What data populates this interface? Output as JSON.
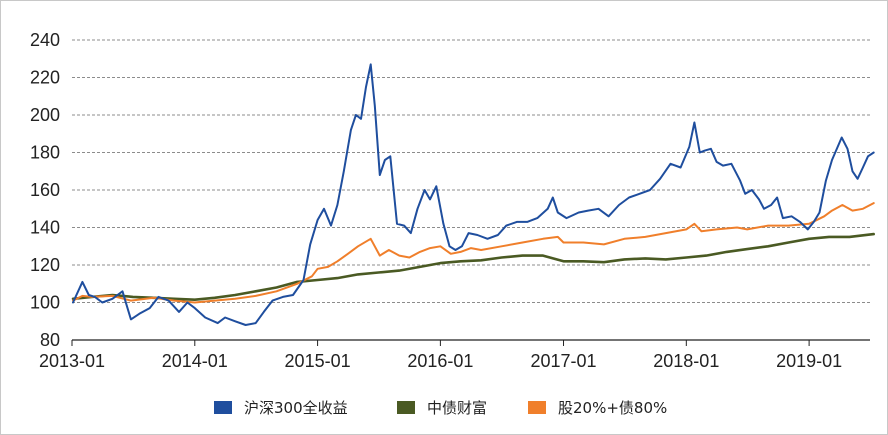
{
  "chart_data": {
    "type": "line",
    "title": "",
    "xlabel": "",
    "ylabel": "",
    "ylim": [
      80,
      240
    ],
    "y_ticks": [
      "80",
      "100",
      "120",
      "140",
      "160",
      "180",
      "200",
      "220",
      "240"
    ],
    "x_tick_labels": [
      "2013-01",
      "2014-01",
      "2015-01",
      "2016-01",
      "2017-01",
      "2018-01",
      "2019-01"
    ],
    "x_range": [
      "2013-01",
      "2019-07"
    ],
    "grid": "horizontal dashed",
    "legend_position": "bottom",
    "series": [
      {
        "name": "沪深300全收益",
        "color": "#1f4e9e",
        "points": [
          [
            "2013-01-04",
            100
          ],
          [
            "2013-02-01",
            111
          ],
          [
            "2013-02-20",
            104
          ],
          [
            "2013-03-10",
            103
          ],
          [
            "2013-04-01",
            100
          ],
          [
            "2013-05-01",
            102
          ],
          [
            "2013-05-31",
            106
          ],
          [
            "2013-06-25",
            91
          ],
          [
            "2013-07-20",
            94
          ],
          [
            "2013-08-20",
            97
          ],
          [
            "2013-09-15",
            103
          ],
          [
            "2013-10-15",
            101
          ],
          [
            "2013-11-15",
            95
          ],
          [
            "2013-12-10",
            100
          ],
          [
            "2014-01-01",
            97
          ],
          [
            "2014-02-01",
            92
          ],
          [
            "2014-03-10",
            89
          ],
          [
            "2014-04-01",
            92
          ],
          [
            "2014-05-01",
            90
          ],
          [
            "2014-06-01",
            88
          ],
          [
            "2014-07-01",
            89
          ],
          [
            "2014-07-25",
            95
          ],
          [
            "2014-08-20",
            101
          ],
          [
            "2014-09-20",
            103
          ],
          [
            "2014-10-20",
            104
          ],
          [
            "2014-11-20",
            112
          ],
          [
            "2014-12-10",
            131
          ],
          [
            "2015-01-01",
            144
          ],
          [
            "2015-01-20",
            150
          ],
          [
            "2015-02-10",
            141
          ],
          [
            "2015-03-01",
            152
          ],
          [
            "2015-03-20",
            170
          ],
          [
            "2015-04-10",
            192
          ],
          [
            "2015-04-25",
            200
          ],
          [
            "2015-05-10",
            198
          ],
          [
            "2015-05-25",
            215
          ],
          [
            "2015-06-08",
            227
          ],
          [
            "2015-06-20",
            205
          ],
          [
            "2015-07-05",
            168
          ],
          [
            "2015-07-20",
            176
          ],
          [
            "2015-08-05",
            178
          ],
          [
            "2015-08-25",
            142
          ],
          [
            "2015-09-15",
            141
          ],
          [
            "2015-10-05",
            137
          ],
          [
            "2015-10-25",
            150
          ],
          [
            "2015-11-15",
            160
          ],
          [
            "2015-12-01",
            155
          ],
          [
            "2015-12-20",
            162
          ],
          [
            "2016-01-10",
            142
          ],
          [
            "2016-01-28",
            130
          ],
          [
            "2016-02-15",
            128
          ],
          [
            "2016-03-05",
            130
          ],
          [
            "2016-03-25",
            137
          ],
          [
            "2016-04-20",
            136
          ],
          [
            "2016-05-20",
            134
          ],
          [
            "2016-06-20",
            136
          ],
          [
            "2016-07-15",
            141
          ],
          [
            "2016-08-15",
            143
          ],
          [
            "2016-09-15",
            143
          ],
          [
            "2016-10-15",
            145
          ],
          [
            "2016-11-15",
            150
          ],
          [
            "2016-11-30",
            156
          ],
          [
            "2016-12-15",
            148
          ],
          [
            "2017-01-10",
            145
          ],
          [
            "2017-02-15",
            148
          ],
          [
            "2017-03-15",
            149
          ],
          [
            "2017-04-15",
            150
          ],
          [
            "2017-05-15",
            146
          ],
          [
            "2017-06-15",
            152
          ],
          [
            "2017-07-15",
            156
          ],
          [
            "2017-08-15",
            158
          ],
          [
            "2017-09-15",
            160
          ],
          [
            "2017-10-15",
            166
          ],
          [
            "2017-11-15",
            174
          ],
          [
            "2017-12-15",
            172
          ],
          [
            "2018-01-10",
            183
          ],
          [
            "2018-01-25",
            196
          ],
          [
            "2018-02-10",
            180
          ],
          [
            "2018-02-25",
            181
          ],
          [
            "2018-03-15",
            182
          ],
          [
            "2018-04-01",
            175
          ],
          [
            "2018-04-20",
            173
          ],
          [
            "2018-05-15",
            174
          ],
          [
            "2018-06-10",
            165
          ],
          [
            "2018-06-25",
            158
          ],
          [
            "2018-07-15",
            160
          ],
          [
            "2018-08-05",
            155
          ],
          [
            "2018-08-20",
            150
          ],
          [
            "2018-09-10",
            152
          ],
          [
            "2018-09-28",
            156
          ],
          [
            "2018-10-15",
            145
          ],
          [
            "2018-11-10",
            146
          ],
          [
            "2018-12-05",
            143
          ],
          [
            "2018-12-28",
            139
          ],
          [
            "2019-01-15",
            143
          ],
          [
            "2019-02-01",
            148
          ],
          [
            "2019-02-20",
            165
          ],
          [
            "2019-03-10",
            176
          ],
          [
            "2019-04-08",
            188
          ],
          [
            "2019-04-25",
            182
          ],
          [
            "2019-05-10",
            170
          ],
          [
            "2019-05-25",
            166
          ],
          [
            "2019-06-10",
            172
          ],
          [
            "2019-06-25",
            178
          ],
          [
            "2019-07-12",
            180
          ]
        ]
      },
      {
        "name": "中债财富",
        "color": "#4a5a23",
        "points": [
          [
            "2013-01-04",
            102
          ],
          [
            "2013-03-01",
            103
          ],
          [
            "2013-05-01",
            104
          ],
          [
            "2013-07-01",
            103
          ],
          [
            "2013-09-01",
            102.5
          ],
          [
            "2013-11-01",
            102
          ],
          [
            "2014-01-01",
            101.5
          ],
          [
            "2014-03-01",
            102.5
          ],
          [
            "2014-05-01",
            104
          ],
          [
            "2014-07-01",
            106
          ],
          [
            "2014-09-01",
            108
          ],
          [
            "2014-11-01",
            111
          ],
          [
            "2015-01-01",
            112
          ],
          [
            "2015-03-01",
            113
          ],
          [
            "2015-05-01",
            115
          ],
          [
            "2015-07-01",
            116
          ],
          [
            "2015-09-01",
            117
          ],
          [
            "2015-11-01",
            119
          ],
          [
            "2016-01-01",
            121
          ],
          [
            "2016-03-01",
            122
          ],
          [
            "2016-05-01",
            122.5
          ],
          [
            "2016-07-01",
            124
          ],
          [
            "2016-09-01",
            125
          ],
          [
            "2016-11-01",
            125
          ],
          [
            "2017-01-01",
            122
          ],
          [
            "2017-03-01",
            122
          ],
          [
            "2017-05-01",
            121.5
          ],
          [
            "2017-07-01",
            123
          ],
          [
            "2017-09-01",
            123.5
          ],
          [
            "2017-11-01",
            123
          ],
          [
            "2018-01-01",
            124
          ],
          [
            "2018-03-01",
            125
          ],
          [
            "2018-05-01",
            127
          ],
          [
            "2018-07-01",
            128.5
          ],
          [
            "2018-09-01",
            130
          ],
          [
            "2018-11-01",
            132
          ],
          [
            "2019-01-01",
            134
          ],
          [
            "2019-03-01",
            135
          ],
          [
            "2019-05-01",
            135
          ],
          [
            "2019-07-12",
            136.5
          ]
        ]
      },
      {
        "name": "股20%+债80%",
        "color": "#f07f2b",
        "points": [
          [
            "2013-01-04",
            101
          ],
          [
            "2013-02-01",
            103.5
          ],
          [
            "2013-03-01",
            103
          ],
          [
            "2013-05-01",
            103.5
          ],
          [
            "2013-06-25",
            101
          ],
          [
            "2013-09-01",
            102.5
          ],
          [
            "2013-11-01",
            101
          ],
          [
            "2014-01-01",
            100
          ],
          [
            "2014-03-01",
            101
          ],
          [
            "2014-05-01",
            102
          ],
          [
            "2014-07-01",
            103.5
          ],
          [
            "2014-09-01",
            106
          ],
          [
            "2014-11-01",
            110
          ],
          [
            "2014-12-15",
            114
          ],
          [
            "2015-01-01",
            118
          ],
          [
            "2015-02-01",
            119
          ],
          [
            "2015-03-01",
            122
          ],
          [
            "2015-04-01",
            126
          ],
          [
            "2015-05-01",
            130
          ],
          [
            "2015-06-08",
            134
          ],
          [
            "2015-07-05",
            125
          ],
          [
            "2015-08-01",
            128
          ],
          [
            "2015-09-01",
            125
          ],
          [
            "2015-10-01",
            124
          ],
          [
            "2015-11-01",
            127
          ],
          [
            "2015-12-01",
            129
          ],
          [
            "2016-01-01",
            130
          ],
          [
            "2016-02-01",
            126
          ],
          [
            "2016-03-01",
            127
          ],
          [
            "2016-04-01",
            129
          ],
          [
            "2016-05-01",
            128
          ],
          [
            "2016-07-01",
            130
          ],
          [
            "2016-09-01",
            132
          ],
          [
            "2016-11-01",
            134
          ],
          [
            "2016-12-15",
            135
          ],
          [
            "2017-01-01",
            132
          ],
          [
            "2017-03-01",
            132
          ],
          [
            "2017-05-01",
            131
          ],
          [
            "2017-07-01",
            134
          ],
          [
            "2017-09-01",
            135
          ],
          [
            "2017-11-01",
            137
          ],
          [
            "2018-01-01",
            139
          ],
          [
            "2018-01-25",
            142
          ],
          [
            "2018-02-15",
            138
          ],
          [
            "2018-04-01",
            139
          ],
          [
            "2018-06-01",
            140
          ],
          [
            "2018-07-01",
            139
          ],
          [
            "2018-09-01",
            141
          ],
          [
            "2018-11-01",
            141
          ],
          [
            "2019-01-01",
            142
          ],
          [
            "2019-02-15",
            146
          ],
          [
            "2019-03-10",
            149
          ],
          [
            "2019-04-10",
            152
          ],
          [
            "2019-05-10",
            149
          ],
          [
            "2019-06-10",
            150
          ],
          [
            "2019-07-12",
            153
          ]
        ]
      }
    ]
  }
}
